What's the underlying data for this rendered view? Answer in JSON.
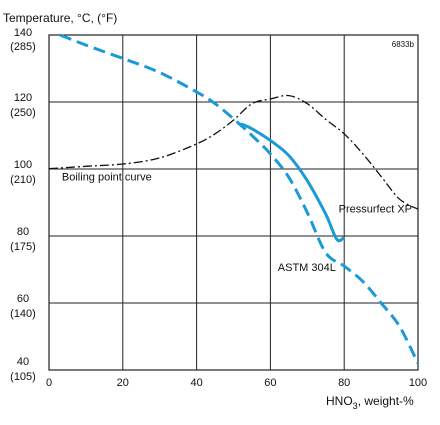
{
  "chart_data": {
    "type": "line",
    "title": "",
    "corner_note": "6833b",
    "ylabel": "Temperature, °C, (°F)",
    "xlabel_prefix": "HNO",
    "xlabel_sub": "3",
    "xlabel_suffix": ", weight-%",
    "xlim": [
      0,
      100
    ],
    "ylim": [
      40,
      140
    ],
    "grid": true,
    "x_ticks": [
      {
        "value": 0,
        "label": "0"
      },
      {
        "value": 20,
        "label": "20"
      },
      {
        "value": 40,
        "label": "40"
      },
      {
        "value": 60,
        "label": "60"
      },
      {
        "value": 80,
        "label": "80"
      },
      {
        "value": 100,
        "label": "100"
      }
    ],
    "y_ticks": [
      {
        "value": 140,
        "label_c": "140",
        "label_f": "(285)"
      },
      {
        "value": 120,
        "label_c": "120",
        "label_f": "(250)"
      },
      {
        "value": 100,
        "label_c": "100",
        "label_f": "(210)"
      },
      {
        "value": 80,
        "label_c": "80",
        "label_f": "(175)"
      },
      {
        "value": 60,
        "label_c": "60",
        "label_f": "(140)"
      },
      {
        "value": 40,
        "label_c": "40",
        "label_f": "(105)"
      }
    ],
    "series": [
      {
        "name": "Boiling point curve",
        "color": "#111111",
        "style": "dash-dot",
        "x": [
          0,
          10,
          20,
          30,
          40,
          45,
          50,
          55,
          60,
          65,
          70,
          75,
          80,
          85,
          90,
          95,
          100
        ],
        "y": [
          100.1,
          100.8,
          101.5,
          103.3,
          107.5,
          110.5,
          114.6,
          119.5,
          120.9,
          121.9,
          119.5,
          114.8,
          110.5,
          104.6,
          97.8,
          91.0,
          88.0
        ]
      },
      {
        "name": "Pressurfect XP",
        "color": "#1a9ad6",
        "style": "solid",
        "x": [
          52,
          55,
          60,
          65,
          70,
          75,
          78,
          80
        ],
        "y": [
          113.5,
          112.0,
          108.5,
          104.0,
          96.5,
          86.5,
          79.0,
          79.6
        ]
      },
      {
        "name": "ASTM 304L",
        "color": "#1a9ad6",
        "style": "dashed",
        "x": [
          3,
          10,
          20,
          30,
          40,
          45,
          50,
          55,
          60,
          65,
          70,
          75,
          80,
          85,
          90,
          95,
          100
        ],
        "y": [
          140.0,
          137.0,
          133.0,
          128.8,
          123.0,
          119.5,
          115.0,
          110.0,
          104.5,
          97.5,
          87.0,
          75.0,
          71.0,
          66.5,
          60.0,
          53.0,
          42.0
        ]
      }
    ],
    "annotations": [
      {
        "text": "Boiling point curve",
        "x": 3.5,
        "y": 96.5
      },
      {
        "text": "Pressurfect XP",
        "x": 78.5,
        "y": 87.0
      },
      {
        "text": "ASTM 304L",
        "x": 62,
        "y": 69.5
      }
    ]
  }
}
